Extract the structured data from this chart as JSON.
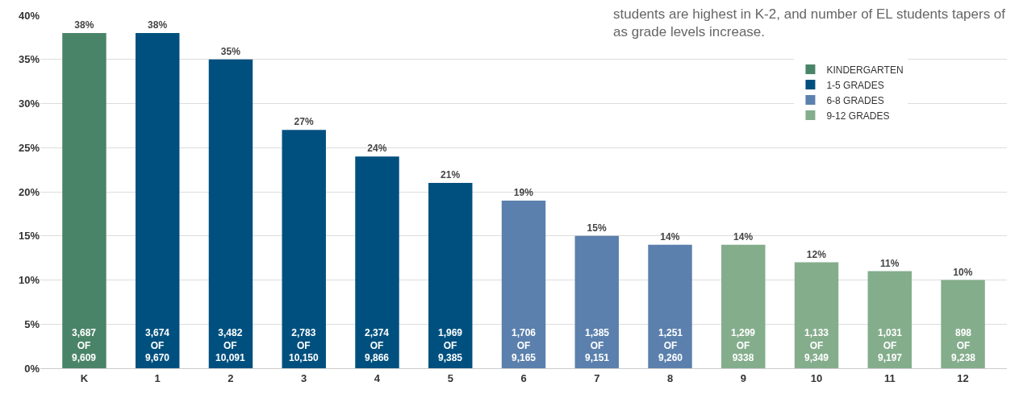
{
  "chart_data": {
    "type": "bar",
    "categories": [
      "K",
      "1",
      "2",
      "3",
      "4",
      "5",
      "6",
      "7",
      "8",
      "9",
      "10",
      "11",
      "12"
    ],
    "series": [
      {
        "name": "KINDERGARTEN",
        "color": "#4a8468",
        "values": [
          38,
          null,
          null,
          null,
          null,
          null,
          null,
          null,
          null,
          null,
          null,
          null,
          null
        ],
        "value_labels": [
          "38%",
          null,
          null,
          null,
          null,
          null,
          null,
          null,
          null,
          null,
          null,
          null,
          null
        ]
      },
      {
        "name": "1-5 GRADES",
        "color": "#00507f",
        "values": [
          null,
          38,
          35,
          27,
          24,
          21,
          null,
          null,
          null,
          null,
          null,
          null,
          null
        ],
        "value_labels": [
          null,
          "38%",
          "35%",
          "27%",
          "24%",
          "21%",
          null,
          null,
          null,
          null,
          null,
          null,
          null
        ]
      },
      {
        "name": "6-8 GRADES",
        "color": "#5b80ad",
        "values": [
          null,
          null,
          null,
          null,
          null,
          null,
          19,
          15,
          14,
          null,
          null,
          null,
          null
        ],
        "value_labels": [
          null,
          null,
          null,
          null,
          null,
          null,
          "19%",
          "15%",
          "14%",
          null,
          null,
          null,
          null
        ]
      },
      {
        "name": "9-12 GRADES",
        "color": "#84ad8c",
        "values": [
          null,
          null,
          null,
          null,
          null,
          null,
          null,
          null,
          null,
          14,
          12,
          11,
          10
        ],
        "value_labels": [
          null,
          null,
          null,
          null,
          null,
          null,
          null,
          null,
          null,
          "14%",
          "12%",
          "11%",
          "10%"
        ]
      }
    ],
    "ylim": [
      0,
      40
    ],
    "yticks": [
      {
        "value": 0,
        "label": "0%"
      },
      {
        "value": 5,
        "label": "5%"
      },
      {
        "value": 10,
        "label": "10%"
      },
      {
        "value": 15,
        "label": "15%"
      },
      {
        "value": 20,
        "label": "20%"
      },
      {
        "value": 25,
        "label": "25%"
      },
      {
        "value": 30,
        "label": "30%"
      },
      {
        "value": 35,
        "label": "35%"
      },
      {
        "value": 40,
        "label": "40%"
      }
    ],
    "grid": "y",
    "legend": "top right",
    "annotations": [
      "students are highest in K-2, and number of EL students tapers of\nas grade levels increase.",
      "3,687\nOF\n9,609",
      "3,674\nOF\n9,670",
      "3,482\nOF\n10,091",
      "2,783\nOF\n10,150",
      "2,374\nOF\n9,866",
      "1,969\nOF\n9,385",
      "1,706\nOF\n9,165",
      "1,385\nOF\n9,151",
      "1,251\nOF\n9,260",
      "1,299\nOF\n9338",
      "1,133\nOF\n9,349",
      "1,031\nOF\n9,197",
      "898\nOF\n9,238"
    ]
  }
}
